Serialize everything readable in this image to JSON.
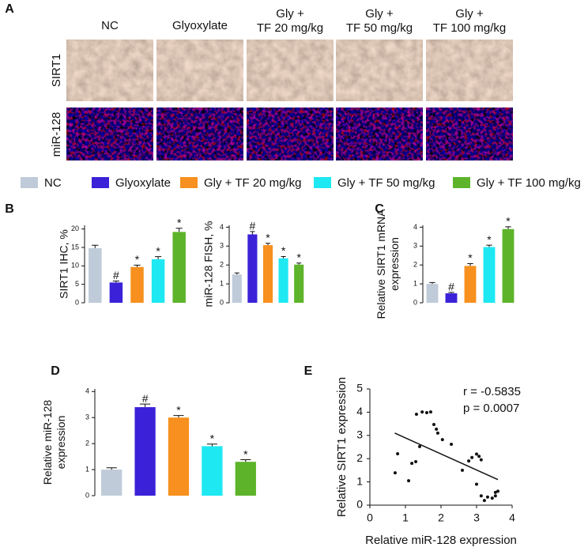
{
  "panel_labels": [
    "A",
    "B",
    "C",
    "D",
    "E"
  ],
  "panel_a": {
    "columns": [
      [
        "NC"
      ],
      [
        "Glyoxylate"
      ],
      [
        "Gly +",
        "TF 20 mg/kg"
      ],
      [
        "Gly +",
        "TF 50 mg/kg"
      ],
      [
        "Gly +",
        "TF 100 mg/kg"
      ]
    ],
    "rows": [
      "SIRT1",
      "miR-128"
    ]
  },
  "legend": [
    {
      "name": "NC",
      "color": "#bfcbd9"
    },
    {
      "name": "Glyoxylate",
      "color": "#3b22d8"
    },
    {
      "name": "Gly + TF 20 mg/kg",
      "color": "#f7901e"
    },
    {
      "name": "Gly + TF 50 mg/kg",
      "color": "#1ee8f2"
    },
    {
      "name": "Gly + TF 100 mg/kg",
      "color": "#5db42a"
    }
  ],
  "chart_data": [
    {
      "type": "bar",
      "ylabel": "SIRT1 IHC, %",
      "values": [
        14.8,
        5.5,
        9.7,
        11.8,
        19.2
      ],
      "errors": [
        0.8,
        0.4,
        0.5,
        0.7,
        1.0
      ],
      "markers": [
        null,
        "#",
        "*",
        "*",
        "*"
      ],
      "ylim": [
        0,
        21
      ],
      "yticks": [
        0,
        5,
        10,
        15,
        20
      ]
    },
    {
      "type": "bar",
      "ylabel": "miR-128 FISH, %",
      "values": [
        1.5,
        3.62,
        3.05,
        2.35,
        2.02
      ],
      "errors": [
        0.08,
        0.15,
        0.1,
        0.1,
        0.08
      ],
      "markers": [
        null,
        "#",
        "*",
        "*",
        "*"
      ],
      "ylim": [
        0,
        4.1
      ],
      "yticks": [
        0,
        1,
        2,
        3,
        4
      ]
    },
    {
      "type": "bar",
      "ylabel": [
        "Relative SIRT1 mRNA",
        "expression"
      ],
      "values": [
        1.0,
        0.5,
        1.95,
        2.95,
        3.9
      ],
      "errors": [
        0.07,
        0.05,
        0.12,
        0.1,
        0.12
      ],
      "markers": [
        null,
        "#",
        "*",
        "*",
        "*"
      ],
      "ylim": [
        0,
        4.1
      ],
      "yticks": [
        0,
        1,
        2,
        3,
        4
      ]
    },
    {
      "type": "bar",
      "ylabel": [
        "Relative miR-128",
        "expression"
      ],
      "values": [
        1.0,
        3.4,
        3.0,
        1.9,
        1.3
      ],
      "errors": [
        0.07,
        0.12,
        0.08,
        0.08,
        0.08
      ],
      "markers": [
        null,
        "#",
        "*",
        "*",
        "*"
      ],
      "ylim": [
        0,
        4.1
      ],
      "yticks": [
        0,
        1,
        2,
        3,
        4
      ]
    },
    {
      "type": "scatter",
      "xlabel": "Relative miR-128 expression",
      "ylabel": "Relative SIRT1 expression",
      "x": [
        0.78,
        0.71,
        1.09,
        1.18,
        1.29,
        1.31,
        1.4,
        1.47,
        1.6,
        1.71,
        1.8,
        1.87,
        1.91,
        2.04,
        2.29,
        2.6,
        2.78,
        2.87,
        3.0,
        3.07,
        3.13,
        3.0,
        3.13,
        3.22,
        3.31,
        3.44,
        3.53,
        3.53,
        3.6
      ],
      "y": [
        2.21,
        1.39,
        1.05,
        1.8,
        1.87,
        3.91,
        2.52,
        4.01,
        3.98,
        4.01,
        3.47,
        3.27,
        3.1,
        2.82,
        2.62,
        1.5,
        1.9,
        2.05,
        2.2,
        2.1,
        1.95,
        0.9,
        0.4,
        0.2,
        0.35,
        0.3,
        0.55,
        0.4,
        0.6
      ],
      "fit": {
        "x": [
          0.7,
          3.6
        ],
        "y": [
          3.1,
          1.1
        ]
      },
      "annotations": [
        "r = -0.5835",
        "p = 0.0007"
      ],
      "xlim": [
        0,
        4
      ],
      "ylim": [
        0,
        5
      ],
      "xticks": [
        0,
        1,
        2,
        3,
        4
      ],
      "yticks": [
        0,
        1,
        2,
        3,
        4,
        5
      ]
    }
  ]
}
